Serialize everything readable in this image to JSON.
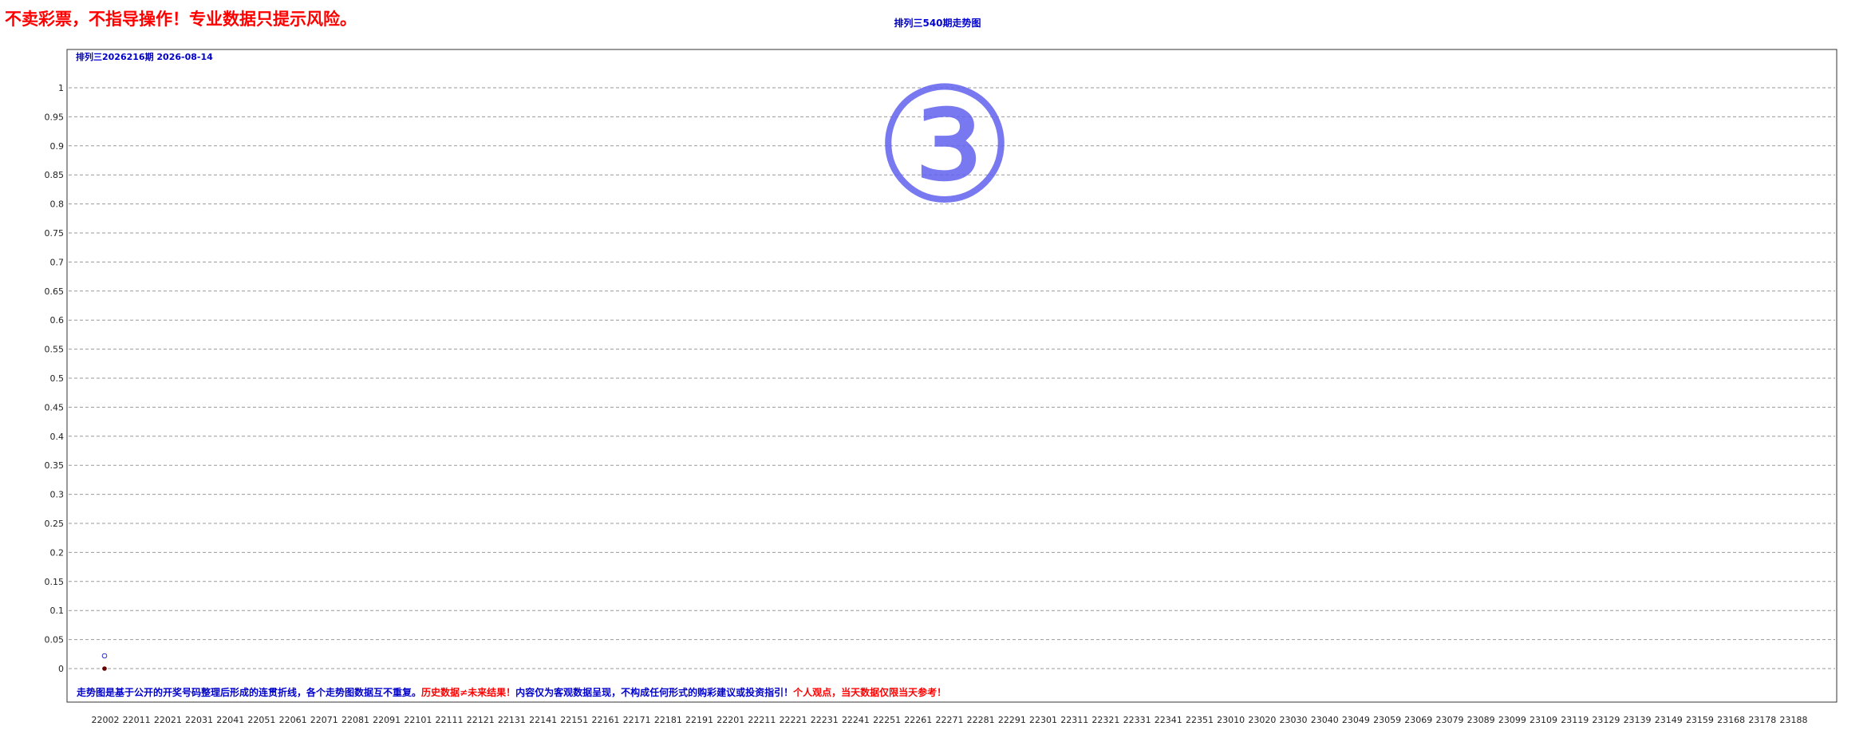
{
  "header": {
    "warning": "不卖彩票，不指导操作！专业数据只提示风险。",
    "chart_title": "排列三540期走势图"
  },
  "chart_data": {
    "type": "line",
    "subtitle": "排列三2026216期  2026-08-14",
    "series": [
      {
        "name": "",
        "values": [
          0
        ]
      }
    ],
    "ylim": [
      0,
      1
    ],
    "y_ticks": [
      0,
      0.05,
      0.1,
      0.15,
      0.2,
      0.25,
      0.3,
      0.35,
      0.4,
      0.45,
      0.5,
      0.55,
      0.6,
      0.65,
      0.7,
      0.75,
      0.8,
      0.85,
      0.9,
      0.95,
      1
    ],
    "x_tick_labels": [
      "22002",
      "22011",
      "22021",
      "22031",
      "22041",
      "22051",
      "22061",
      "22071",
      "22081",
      "22091",
      "22101",
      "22111",
      "22121",
      "22131",
      "22141",
      "22151",
      "22161",
      "22171",
      "22181",
      "22191",
      "22201",
      "22211",
      "22221",
      "22231",
      "22241",
      "22251",
      "22261",
      "22271",
      "22281",
      "22291",
      "22301",
      "22311",
      "22321",
      "22331",
      "22341",
      "22351",
      "23010",
      "23020",
      "23030",
      "23040",
      "23049",
      "23059",
      "23069",
      "23079",
      "23089",
      "23099",
      "23109",
      "23119",
      "23129",
      "23139",
      "23149",
      "23159",
      "23168",
      "23178",
      "23188"
    ],
    "grid": true,
    "point_label": "1",
    "line_color": "#ff0000",
    "marker_color": "#660000",
    "zero_marker_color": "#3333cc",
    "watermark": "③",
    "footer_segments": [
      {
        "text": "走势图是基于公开的开奖号码整理后形成的连贯折线，各个走势图数据互不重复。",
        "color": "#0000cc"
      },
      {
        "text": "历史数据≠未来结果！",
        "color": "#ff0000"
      },
      {
        "text": "内容仅为客观数据呈现，不构成任何形式的购彩建议或投资指引！",
        "color": "#0000cc"
      },
      {
        "text": "个人观点，当天数据仅限当天参考！",
        "color": "#ff0000"
      }
    ]
  }
}
